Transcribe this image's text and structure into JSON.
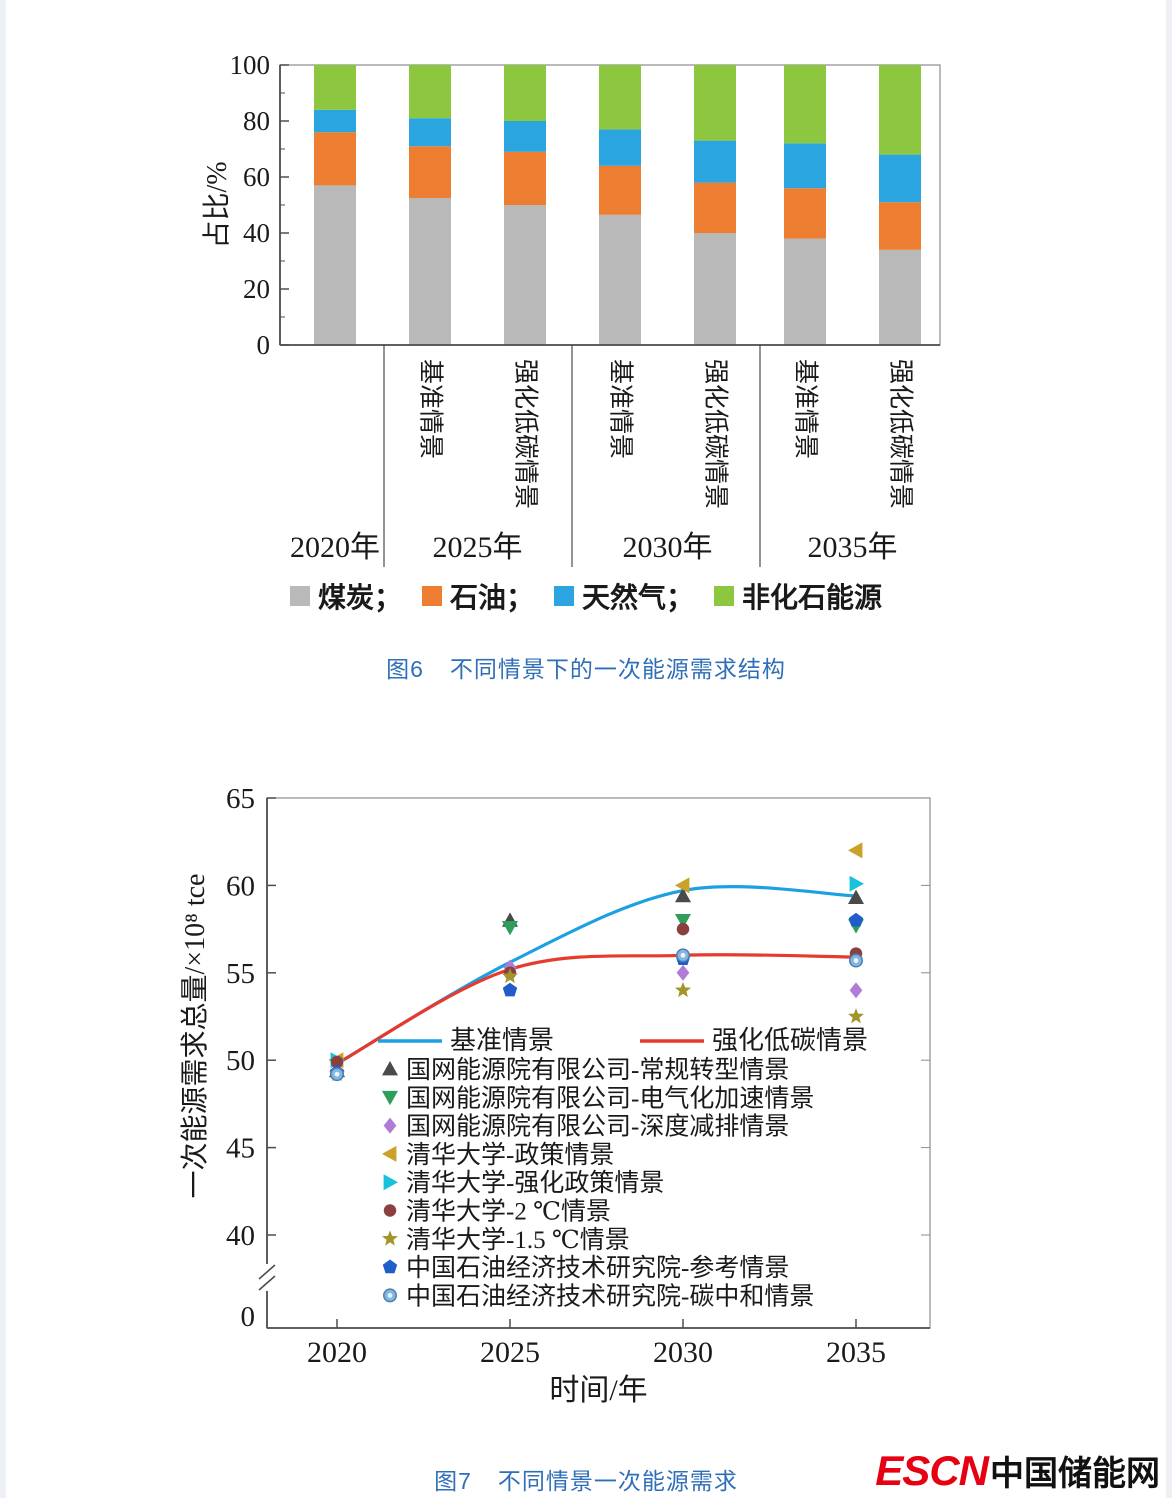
{
  "style": {
    "caption_color": "#2f6eb8",
    "logo_red": "#e60012",
    "axis_color": "#4d4d4d",
    "box_color": "#8c8c8c"
  },
  "figure6": {
    "caption_prefix": "图6",
    "caption_text": "不同情景下的一次能源需求结构"
  },
  "figure7": {
    "caption_prefix": "图7",
    "caption_text": "不同情景一次能源需求"
  },
  "logo": {
    "escn": "ESCN",
    "site_name": "中国储能网"
  },
  "chart_data": [
    {
      "type": "bar",
      "stacked": true,
      "title": "",
      "xlabel": "",
      "ylabel": "占比/%",
      "ylim": [
        0,
        100
      ],
      "yticks": [
        0,
        20,
        40,
        60,
        80,
        100
      ],
      "stack_order": [
        "煤炭",
        "石油",
        "天然气",
        "非化石能源"
      ],
      "groups": [
        {
          "year": "2020年",
          "bars": [
            {
              "label": "",
              "values": [
                57,
                19,
                8,
                16
              ]
            }
          ]
        },
        {
          "year": "2025年",
          "bars": [
            {
              "label": "基准情景",
              "values": [
                52.5,
                18.5,
                10,
                19
              ]
            },
            {
              "label": "强化低碳情景",
              "values": [
                50,
                19,
                11,
                20
              ]
            }
          ]
        },
        {
          "year": "2030年",
          "bars": [
            {
              "label": "基准情景",
              "values": [
                46.5,
                17.5,
                13,
                23
              ]
            },
            {
              "label": "强化低碳情景",
              "values": [
                40,
                18,
                15,
                27
              ]
            }
          ]
        },
        {
          "year": "2035年",
          "bars": [
            {
              "label": "基准情景",
              "values": [
                38,
                18,
                16,
                28
              ]
            },
            {
              "label": "强化低碳情景",
              "values": [
                34,
                17,
                17,
                32
              ]
            }
          ]
        }
      ],
      "series_legend": [
        {
          "label": "煤炭；",
          "color": "#b9b9b9"
        },
        {
          "label": "石油；",
          "color": "#ed7d31"
        },
        {
          "label": "天然气；",
          "color": "#2aa5e0"
        },
        {
          "label": "非化石能源",
          "color": "#8dc63f"
        }
      ]
    },
    {
      "type": "line",
      "title": "",
      "xlabel": "时间/年",
      "ylabel": "一次能源需求总量/×10⁸ tce",
      "x": [
        2020,
        2025,
        2030,
        2035
      ],
      "xticks": [
        "2020",
        "2025",
        "2030",
        "2035"
      ],
      "ylim": [
        40,
        65
      ],
      "yticks": [
        40,
        45,
        50,
        55,
        60,
        65
      ],
      "y_break_label": "0",
      "legend_position": "inside-bottom-left",
      "lines": [
        {
          "name": "基准情景",
          "color": "#1ba1e2",
          "values": [
            49.8,
            55.6,
            59.7,
            59.4
          ]
        },
        {
          "name": "强化低碳情景",
          "color": "#e8392e",
          "values": [
            49.8,
            55.2,
            56.0,
            55.9
          ]
        }
      ],
      "scatter": [
        {
          "name": "国网能源院有限公司-常规转型情景",
          "marker": "triangle-up",
          "color": "#4a4a4a",
          "values": [
            49.4,
            58.0,
            59.4,
            59.3
          ]
        },
        {
          "name": "国网能源院有限公司-电气化加速情景",
          "marker": "triangle-down",
          "color": "#2e9e5b",
          "values": [
            49.7,
            57.6,
            58.0,
            57.7
          ]
        },
        {
          "name": "国网能源院有限公司-深度减排情景",
          "marker": "diamond",
          "color": "#b07cd8",
          "values": [
            49.4,
            55.3,
            55.0,
            54.0
          ]
        },
        {
          "name": "清华大学-政策情景",
          "marker": "triangle-left",
          "color": "#c9a227",
          "values": [
            50.0,
            null,
            60.0,
            62.0
          ]
        },
        {
          "name": "清华大学-强化政策情景",
          "marker": "triangle-right",
          "color": "#17c3d9",
          "values": [
            50.0,
            null,
            null,
            60.1
          ]
        },
        {
          "name": "清华大学-2 ℃情景",
          "marker": "circle",
          "color": "#8b4040",
          "values": [
            49.9,
            55.0,
            57.5,
            56.1
          ]
        },
        {
          "name": "清华大学-1.5 ℃情景",
          "marker": "star",
          "color": "#a3952a",
          "values": [
            49.2,
            54.8,
            54.0,
            52.5
          ]
        },
        {
          "name": "中国石油经济技术研究院-参考情景",
          "marker": "pentagon",
          "color": "#1f5ec9",
          "values": [
            49.3,
            54.0,
            55.8,
            58.0
          ]
        },
        {
          "name": "中国石油经济技术研究院-碳中和情景",
          "marker": "circle-ring",
          "color": "#85b6dd",
          "values": [
            49.2,
            null,
            56.0,
            55.7
          ]
        }
      ]
    }
  ]
}
